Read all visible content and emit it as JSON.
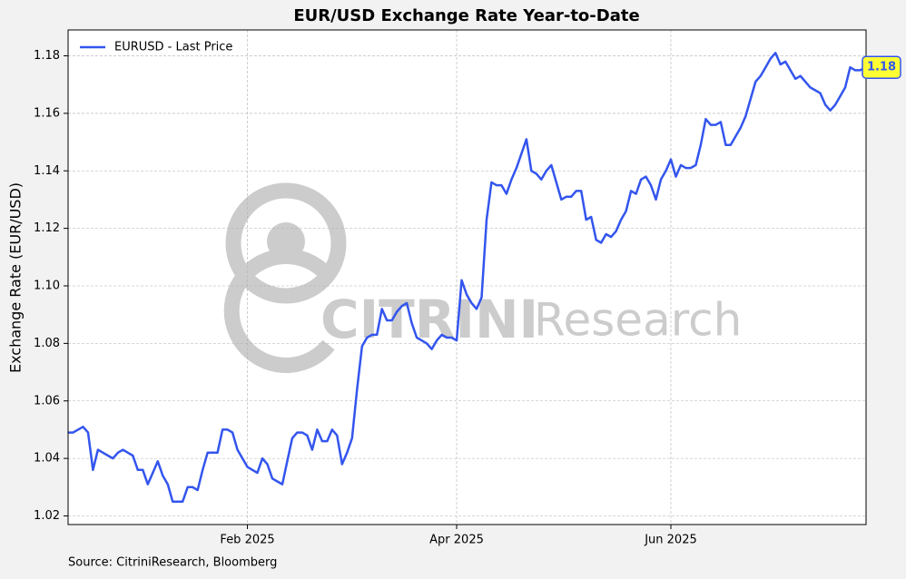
{
  "chart_data": {
    "type": "line",
    "title": "EUR/USD Exchange Rate Year-to-Date",
    "ylabel": "Exchange Rate (EUR/USD)",
    "source": "Source: CitriniResearch, Bloomberg",
    "watermark": [
      "CITRINI",
      "Research"
    ],
    "legend": "upper left",
    "grid": true,
    "annotation": "1.18",
    "ylim": [
      1.017,
      1.189
    ],
    "yticks": [
      1.02,
      1.04,
      1.06,
      1.08,
      {
        "value": 1.1,
        "label": "1.10"
      },
      1.12,
      1.14,
      1.16,
      1.18
    ],
    "categories": [
      null,
      null,
      null,
      null,
      null,
      null,
      null,
      null,
      null,
      null,
      null,
      null,
      null,
      null,
      null,
      null,
      null,
      null,
      null,
      null,
      null,
      null,
      null,
      null,
      null,
      null,
      null,
      null,
      null,
      null,
      null,
      null,
      null,
      null,
      null,
      null,
      "Feb 2025",
      null,
      null,
      null,
      null,
      null,
      null,
      null,
      null,
      null,
      null,
      null,
      null,
      null,
      null,
      null,
      null,
      null,
      null,
      null,
      null,
      null,
      null,
      null,
      null,
      null,
      null,
      null,
      null,
      null,
      null,
      null,
      null,
      null,
      null,
      null,
      null,
      null,
      null,
      null,
      null,
      null,
      "Apr 2025",
      null,
      null,
      null,
      null,
      null,
      null,
      null,
      null,
      null,
      null,
      null,
      null,
      null,
      null,
      null,
      null,
      null,
      null,
      null,
      null,
      null,
      null,
      null,
      null,
      null,
      null,
      null,
      null,
      null,
      null,
      null,
      null,
      null,
      null,
      null,
      null,
      null,
      null,
      null,
      null,
      null,
      null,
      "Jun 2025",
      null,
      null,
      null,
      null,
      null,
      null,
      null,
      null,
      null,
      null,
      null,
      null,
      null,
      null,
      null,
      null,
      null,
      null,
      null,
      null,
      null,
      null,
      null,
      null,
      null,
      null,
      null,
      null,
      null,
      null,
      null,
      null,
      null,
      null,
      null,
      null,
      null,
      null,
      null
    ],
    "series": [
      {
        "name": "EURUSD - Last Price",
        "color": "#3355ee",
        "values": [
          1.049,
          1.049,
          1.05,
          1.051,
          1.049,
          1.036,
          1.043,
          1.042,
          1.041,
          1.04,
          1.042,
          1.043,
          1.042,
          1.041,
          1.036,
          1.036,
          1.031,
          1.035,
          1.039,
          1.034,
          1.031,
          1.025,
          1.025,
          1.025,
          1.03,
          1.03,
          1.029,
          1.036,
          1.042,
          1.042,
          1.042,
          1.05,
          1.05,
          1.049,
          1.043,
          1.04,
          1.037,
          1.036,
          1.035,
          1.04,
          1.038,
          1.033,
          1.032,
          1.031,
          1.039,
          1.047,
          1.049,
          1.049,
          1.048,
          1.043,
          1.05,
          1.046,
          1.046,
          1.05,
          1.048,
          1.038,
          1.042,
          1.047,
          1.064,
          1.079,
          1.082,
          1.083,
          1.083,
          1.092,
          1.088,
          1.088,
          1.091,
          1.093,
          1.094,
          1.087,
          1.082,
          1.081,
          1.08,
          1.078,
          1.081,
          1.083,
          1.082,
          1.082,
          1.081,
          1.102,
          1.097,
          1.094,
          1.092,
          1.096,
          1.123,
          1.136,
          1.135,
          1.135,
          1.132,
          1.137,
          1.141,
          1.146,
          1.151,
          1.14,
          1.139,
          1.137,
          1.14,
          1.142,
          1.136,
          1.13,
          1.131,
          1.131,
          1.133,
          1.133,
          1.123,
          1.124,
          1.116,
          1.115,
          1.118,
          1.117,
          1.119,
          1.123,
          1.126,
          1.133,
          1.132,
          1.137,
          1.138,
          1.135,
          1.13,
          1.137,
          1.14,
          1.144,
          1.138,
          1.142,
          1.141,
          1.141,
          1.142,
          1.149,
          1.158,
          1.156,
          1.156,
          1.157,
          1.149,
          1.149,
          1.152,
          1.155,
          1.159,
          1.165,
          1.171,
          1.173,
          1.176,
          1.179,
          1.181,
          1.177,
          1.178,
          1.175,
          1.172,
          1.173,
          1.171,
          1.169,
          1.168,
          1.167,
          1.163,
          1.161,
          1.163,
          1.166,
          1.169,
          1.176,
          1.175,
          1.175,
          1.176
        ]
      }
    ]
  }
}
